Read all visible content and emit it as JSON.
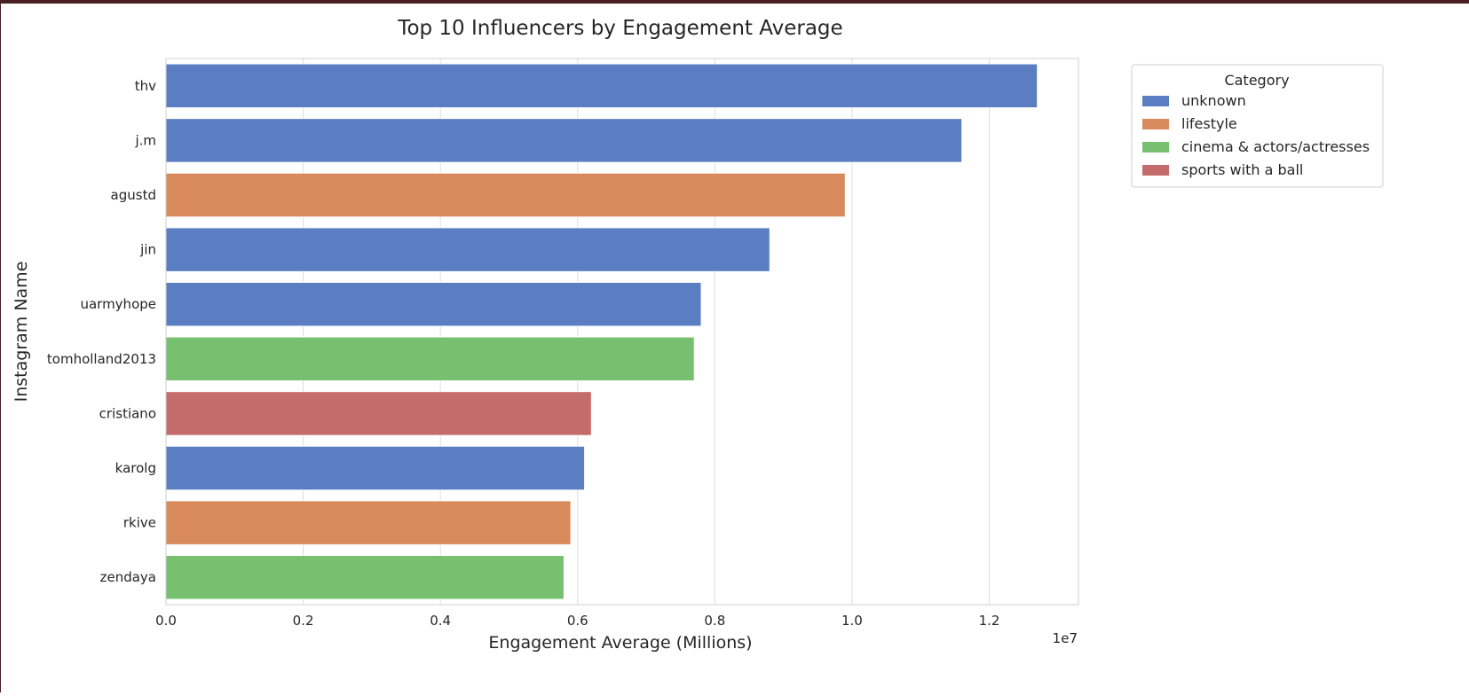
{
  "chart_data": {
    "type": "bar",
    "orientation": "horizontal",
    "title": "Top 10 Influencers by Engagement Average",
    "xlabel": "Engagement Average (Millions)",
    "ylabel": "Instagram Name",
    "x_offset_text": "1e7",
    "xlim": [
      0,
      13300000
    ],
    "xticks": [
      0,
      2000000,
      4000000,
      6000000,
      8000000,
      10000000,
      12000000
    ],
    "xtick_labels": [
      "0.0",
      "0.2",
      "0.4",
      "0.6",
      "0.8",
      "1.0",
      "1.2"
    ],
    "grid": true,
    "legend": {
      "title": "Category",
      "placement": "outside-top-right",
      "entries": [
        {
          "label": "unknown",
          "color": "#5b7ec2"
        },
        {
          "label": "lifestyle",
          "color": "#d98a5c"
        },
        {
          "label": "cinema & actors/actresses",
          "color": "#76c06f"
        },
        {
          "label": "sports with a ball",
          "color": "#c46c6b"
        }
      ]
    },
    "bars": [
      {
        "name": "thv",
        "value": 12700000,
        "category": "unknown"
      },
      {
        "name": "j.m",
        "value": 11600000,
        "category": "unknown"
      },
      {
        "name": "agustd",
        "value": 9900000,
        "category": "lifestyle"
      },
      {
        "name": "jin",
        "value": 8800000,
        "category": "unknown"
      },
      {
        "name": "uarmyhope",
        "value": 7800000,
        "category": "unknown"
      },
      {
        "name": "tomholland2013",
        "value": 7700000,
        "category": "cinema & actors/actresses"
      },
      {
        "name": "cristiano",
        "value": 6200000,
        "category": "sports with a ball"
      },
      {
        "name": "karolg",
        "value": 6100000,
        "category": "unknown"
      },
      {
        "name": "rkive",
        "value": 5900000,
        "category": "lifestyle"
      },
      {
        "name": "zendaya",
        "value": 5800000,
        "category": "cinema & actors/actresses"
      }
    ]
  }
}
